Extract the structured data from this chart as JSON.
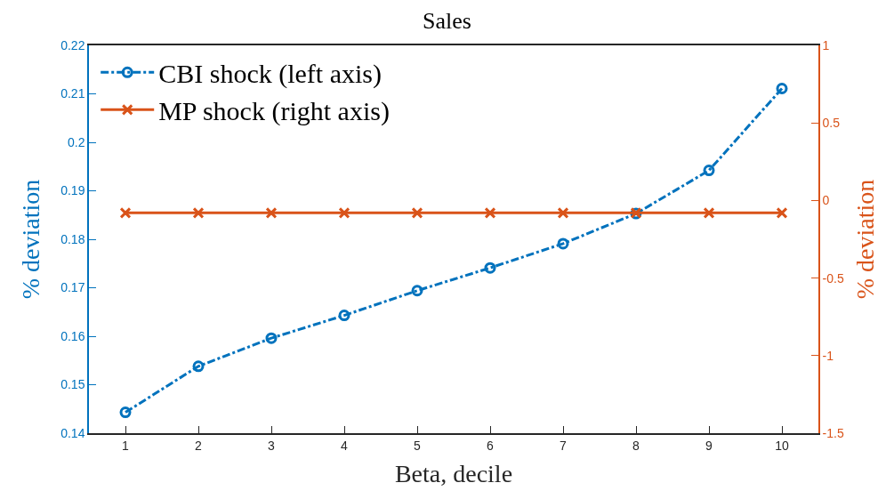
{
  "chart_data": {
    "type": "line",
    "title": "Sales",
    "xlabel": "Beta, decile",
    "ylabel": "% deviation",
    "y2label": "% deviation",
    "x": [
      1,
      2,
      3,
      4,
      5,
      6,
      7,
      8,
      9,
      10
    ],
    "series": [
      {
        "name": "CBI shock (left axis)",
        "color": "#0072bd",
        "marker": "circle",
        "line_style": "dashdot",
        "values": [
          0.1443,
          0.1538,
          0.1596,
          0.1643,
          0.1694,
          0.1741,
          0.1791,
          0.1853,
          0.1942,
          0.2111
        ]
      },
      {
        "name": "MP shock (right axis)",
        "color": "#d95319",
        "marker": "cross",
        "line_style": "solid",
        "axis": "y2",
        "values": [
          -0.08,
          -0.08,
          -0.08,
          -0.08,
          -0.08,
          -0.08,
          -0.08,
          -0.08,
          -0.08,
          -0.08
        ]
      }
    ],
    "xlim": [
      0.5,
      10.5
    ],
    "xticks": [
      1,
      2,
      3,
      4,
      5,
      6,
      7,
      8,
      9,
      10
    ],
    "ylim": [
      0.14,
      0.22
    ],
    "yticks": [
      0.14,
      0.15,
      0.16,
      0.17,
      0.18,
      0.19,
      0.2,
      0.21,
      0.22
    ],
    "y2lim": [
      -1.5,
      1
    ],
    "y2ticks": [
      -1.5,
      -1,
      -0.5,
      0,
      0.5,
      1
    ],
    "legend": "top left"
  }
}
